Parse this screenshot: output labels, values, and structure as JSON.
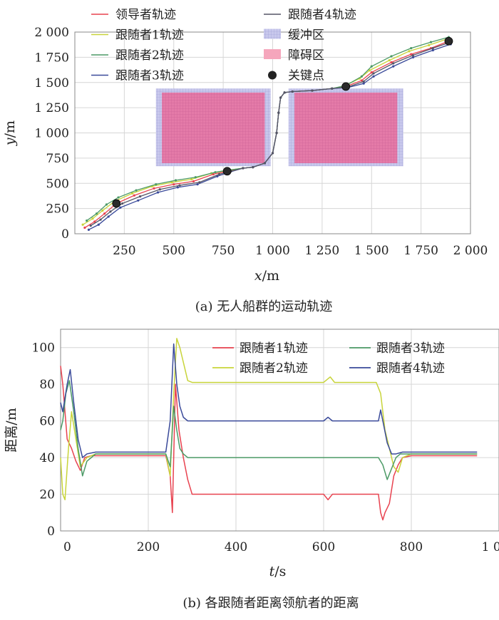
{
  "chart_data": [
    {
      "type": "line",
      "title": "",
      "caption": "(a) 无人船群的运动轨迹",
      "xlabel_var": "x",
      "xlabel_unit": "/m",
      "ylabel_var": "y",
      "ylabel_unit": "/m",
      "xlim": [
        0,
        2000
      ],
      "ylim": [
        0,
        2000
      ],
      "xticks": [
        250,
        500,
        750,
        1000,
        1250,
        1500,
        1750,
        2000
      ],
      "xtick_labels": [
        "250",
        "500",
        "750",
        "1 000",
        "1 250",
        "1 500",
        "1 750",
        "2 000"
      ],
      "yticks": [
        0,
        250,
        500,
        750,
        1000,
        1250,
        1500,
        1750,
        2000
      ],
      "ytick_labels": [
        "0",
        "250",
        "500",
        "750",
        "1 000",
        "1 250",
        "1 500",
        "1 750",
        "2 000"
      ],
      "grid": true,
      "legend_placement": "top",
      "legend": [
        {
          "label": "领导者轨迹",
          "color": "#e8424f",
          "kind": "line"
        },
        {
          "label": "跟随者1轨迹",
          "color": "#c8d43a",
          "kind": "line"
        },
        {
          "label": "跟随者2轨迹",
          "color": "#4c9a66",
          "kind": "line"
        },
        {
          "label": "跟随者3轨迹",
          "color": "#3a4a9a",
          "kind": "line"
        },
        {
          "label": "跟随者4轨迹",
          "color": "#555566",
          "kind": "line"
        },
        {
          "label": "缓冲区",
          "color": "#b4b4e0",
          "kind": "box"
        },
        {
          "label": "障碍区",
          "color": "#f0a0b4",
          "kind": "box"
        },
        {
          "label": "关键点",
          "color": "#222222",
          "kind": "dot"
        }
      ],
      "buffer_zones": [
        {
          "x": [
            410,
            990
          ],
          "y": [
            670,
            1440
          ]
        },
        {
          "x": [
            1080,
            1660
          ],
          "y": [
            670,
            1440
          ]
        }
      ],
      "obstacle_zones": [
        {
          "x": [
            440,
            960
          ],
          "y": [
            700,
            1400
          ]
        },
        {
          "x": [
            1110,
            1630
          ],
          "y": [
            700,
            1400
          ]
        }
      ],
      "key_points": [
        {
          "x": 210,
          "y": 300
        },
        {
          "x": 770,
          "y": 620
        },
        {
          "x": 1370,
          "y": 1460
        },
        {
          "x": 1890,
          "y": 1910
        }
      ],
      "series": [
        {
          "name": "领导者轨迹",
          "color": "#e8424f",
          "x": [
            50,
            100,
            150,
            210,
            300,
            400,
            500,
            600,
            700,
            770,
            850,
            900,
            960,
            1000,
            1020,
            1030,
            1040,
            1060,
            1100,
            1200,
            1300,
            1370,
            1450,
            1500,
            1600,
            1700,
            1800,
            1890
          ],
          "y": [
            60,
            120,
            200,
            300,
            380,
            450,
            490,
            520,
            590,
            620,
            650,
            660,
            700,
            800,
            1000,
            1200,
            1350,
            1400,
            1410,
            1420,
            1440,
            1460,
            1520,
            1600,
            1700,
            1780,
            1840,
            1910
          ]
        },
        {
          "name": "跟随者1轨迹",
          "color": "#c8d43a",
          "x": [
            40,
            90,
            140,
            200,
            290,
            390,
            490,
            590,
            690,
            760,
            850,
            900,
            960,
            1000,
            1020,
            1030,
            1040,
            1060,
            1100,
            1200,
            1300,
            1360,
            1440,
            1490,
            1590,
            1690,
            1790,
            1880
          ],
          "y": [
            90,
            150,
            230,
            320,
            400,
            470,
            510,
            540,
            600,
            625,
            650,
            660,
            700,
            800,
            1000,
            1200,
            1350,
            1400,
            1410,
            1420,
            1440,
            1465,
            1540,
            1620,
            1720,
            1810,
            1870,
            1930
          ]
        },
        {
          "name": "跟随者2轨迹",
          "color": "#4c9a66",
          "x": [
            60,
            110,
            160,
            220,
            310,
            410,
            510,
            610,
            710,
            770,
            850,
            900,
            960,
            1000,
            1020,
            1030,
            1040,
            1060,
            1100,
            1200,
            1300,
            1370,
            1450,
            1500,
            1600,
            1700,
            1800,
            1890
          ],
          "y": [
            130,
            200,
            290,
            360,
            430,
            490,
            530,
            560,
            610,
            630,
            650,
            660,
            700,
            800,
            1000,
            1200,
            1350,
            1400,
            1410,
            1420,
            1440,
            1470,
            1560,
            1660,
            1760,
            1840,
            1900,
            1950
          ]
        },
        {
          "name": "跟随者3轨迹",
          "color": "#3a4a9a",
          "x": [
            70,
            120,
            170,
            230,
            320,
            420,
            520,
            620,
            720,
            780,
            850,
            900,
            960,
            1000,
            1020,
            1030,
            1040,
            1060,
            1100,
            1200,
            1300,
            1380,
            1460,
            1510,
            1610,
            1710,
            1810,
            1900
          ],
          "y": [
            40,
            90,
            170,
            260,
            330,
            410,
            460,
            490,
            570,
            610,
            650,
            660,
            700,
            800,
            1000,
            1200,
            1350,
            1400,
            1410,
            1420,
            1440,
            1450,
            1490,
            1560,
            1660,
            1750,
            1820,
            1880
          ]
        },
        {
          "name": "跟随者4轨迹",
          "color": "#555566",
          "x": [
            80,
            130,
            180,
            240,
            330,
            430,
            530,
            630,
            730,
            790,
            850,
            900,
            960,
            1000,
            1020,
            1030,
            1040,
            1060,
            1100,
            1200,
            1300,
            1380,
            1460,
            1510,
            1610,
            1710,
            1810,
            1900
          ],
          "y": [
            80,
            140,
            220,
            300,
            370,
            440,
            480,
            510,
            590,
            620,
            650,
            660,
            700,
            800,
            1000,
            1200,
            1350,
            1400,
            1410,
            1420,
            1440,
            1455,
            1510,
            1590,
            1690,
            1770,
            1840,
            1900
          ]
        }
      ]
    },
    {
      "type": "line",
      "title": "",
      "caption": "(b) 各跟随者距离领航者的距离",
      "xlabel_var": "t",
      "xlabel_unit": "/s",
      "ylabel": "距离/m",
      "xlim": [
        0,
        1000
      ],
      "ylim": [
        0,
        110
      ],
      "xticks": [
        0,
        200,
        400,
        600,
        800,
        1000
      ],
      "xtick_labels": [
        "0",
        "200",
        "400",
        "600",
        "800",
        "1 000"
      ],
      "yticks": [
        0,
        20,
        40,
        60,
        80,
        100
      ],
      "ytick_labels": [
        "0",
        "20",
        "40",
        "60",
        "80",
        "100"
      ],
      "grid": true,
      "legend_placement": "top-right",
      "series": [
        {
          "name": "跟随者1轨迹",
          "color": "#e8424f",
          "x": [
            0,
            5,
            15,
            25,
            35,
            45,
            55,
            70,
            100,
            200,
            240,
            250,
            255,
            262,
            270,
            280,
            290,
            300,
            400,
            500,
            600,
            610,
            620,
            700,
            725,
            730,
            735,
            740,
            750,
            760,
            770,
            780,
            800,
            900,
            950
          ],
          "y": [
            90,
            80,
            50,
            45,
            38,
            33,
            40,
            41,
            41,
            41,
            41,
            30,
            10,
            80,
            55,
            40,
            28,
            20,
            20,
            20,
            20,
            17,
            20,
            20,
            20,
            10,
            6,
            10,
            15,
            30,
            36,
            40,
            41,
            41,
            41
          ]
        },
        {
          "name": "跟随者2轨迹",
          "color": "#c8d43a",
          "x": [
            0,
            5,
            10,
            18,
            25,
            35,
            45,
            60,
            80,
            100,
            200,
            240,
            250,
            258,
            265,
            272,
            280,
            290,
            300,
            400,
            500,
            600,
            615,
            625,
            700,
            720,
            730,
            740,
            750,
            760,
            770,
            780,
            800,
            900,
            950
          ],
          "y": [
            40,
            20,
            17,
            45,
            65,
            50,
            35,
            40,
            42,
            42,
            42,
            42,
            30,
            75,
            105,
            100,
            92,
            82,
            81,
            81,
            81,
            81,
            84,
            81,
            81,
            81,
            75,
            55,
            45,
            35,
            32,
            40,
            42,
            42,
            42
          ]
        },
        {
          "name": "跟随者3轨迹",
          "color": "#4c9a66",
          "x": [
            0,
            5,
            12,
            20,
            30,
            40,
            50,
            60,
            80,
            100,
            200,
            240,
            250,
            258,
            265,
            272,
            280,
            290,
            300,
            400,
            500,
            600,
            700,
            725,
            735,
            745,
            755,
            765,
            775,
            790,
            800,
            900,
            950
          ],
          "y": [
            55,
            60,
            75,
            82,
            65,
            45,
            30,
            38,
            42,
            42,
            42,
            42,
            35,
            68,
            55,
            45,
            42,
            40,
            40,
            40,
            40,
            40,
            40,
            40,
            36,
            28,
            34,
            40,
            42,
            42,
            42,
            42,
            42
          ]
        },
        {
          "name": "跟随者4轨迹",
          "color": "#3a4a9a",
          "x": [
            0,
            5,
            15,
            22,
            30,
            40,
            50,
            60,
            80,
            100,
            200,
            240,
            250,
            258,
            265,
            272,
            280,
            290,
            300,
            400,
            500,
            600,
            610,
            620,
            700,
            725,
            730,
            735,
            745,
            755,
            765,
            780,
            800,
            900,
            950
          ],
          "y": [
            70,
            65,
            80,
            88,
            70,
            50,
            40,
            42,
            43,
            43,
            43,
            43,
            60,
            102,
            80,
            68,
            62,
            60,
            60,
            60,
            60,
            60,
            62,
            60,
            60,
            60,
            66,
            60,
            48,
            42,
            42,
            43,
            43,
            43,
            43
          ]
        }
      ]
    }
  ]
}
